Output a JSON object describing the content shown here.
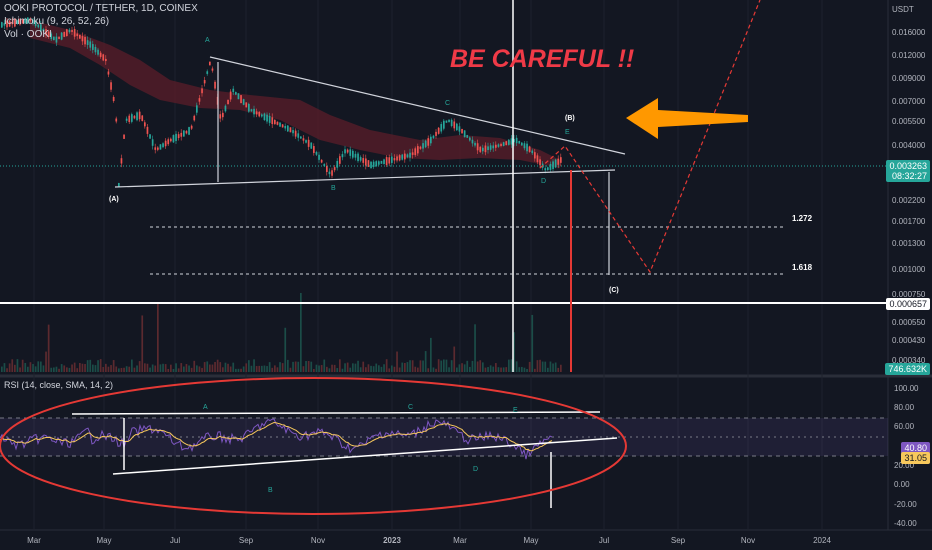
{
  "header": {
    "symbol": "OOKI PROTOCOL / TETHER, 1D, COINEX",
    "ichimoku": "Ichimoku (9, 26, 52, 26)",
    "volume": "Vol · OOKI"
  },
  "currency": "USDT",
  "price_axis_ticks": [
    "0.016000",
    "0.012000",
    "0.009000",
    "0.007000",
    "0.005500",
    "0.004000",
    "0.002200",
    "0.001700",
    "0.001300",
    "0.001000",
    "0.000750",
    "0.000550",
    "0.000430",
    "0.000340"
  ],
  "price_tag": {
    "value": "0.003263",
    "countdown": "08:32:27"
  },
  "level_tag": "0.000657",
  "volume_tag": "746.632K",
  "annotation": {
    "text": "BE CAREFUL !!",
    "color": "#ef3a47"
  },
  "fib_labels": [
    "1.272",
    "1.618"
  ],
  "wave_labels": {
    "A_bottom": "(A)",
    "B_top": "(B)",
    "C_bottom": "(C)",
    "A": "A",
    "B": "B",
    "C": "C",
    "D": "D",
    "E": "E"
  },
  "rsi": {
    "title": "RSI (14, close, SMA, 14, 2)",
    "axis_ticks": [
      "100.00",
      "80.00",
      "60.00",
      "20.00",
      "0.00",
      "-20.00",
      "-40.00"
    ],
    "value_tags": [
      "40.80",
      "31.05"
    ],
    "wave_labels": {
      "A": "A",
      "B": "B",
      "C": "C",
      "D": "D",
      "E": "E"
    }
  },
  "time_axis": [
    "Mar",
    "May",
    "Jul",
    "Sep",
    "Nov",
    "2023",
    "Mar",
    "May",
    "Jul",
    "Sep",
    "Nov",
    "2024"
  ],
  "chart_data": {
    "type": "candlestick",
    "title": "OOKI PROTOCOL / TETHER, 1D, COINEX",
    "y_scale": "log",
    "price_range_usdt": [
      0.00032,
      0.021
    ],
    "key_points": [
      {
        "label": "(A)",
        "period": "May 2022",
        "price": 0.0029
      },
      {
        "label": "A",
        "period": "Aug 2022",
        "price": 0.012
      },
      {
        "label": "B",
        "period": "Nov 2022",
        "price": 0.0032
      },
      {
        "label": "C",
        "period": "Feb 2023",
        "price": 0.0058
      },
      {
        "label": "D",
        "period": "May 2023",
        "price": 0.0031
      },
      {
        "label": "E",
        "period": "Jun 2023",
        "price": 0.0044
      },
      {
        "label": "(B)",
        "period": "Jun 2023",
        "price": 0.0048
      },
      {
        "label": "(C)",
        "period": "Jul 2023",
        "price": 0.00085
      }
    ],
    "current_price": 0.003263,
    "fib_levels": [
      {
        "name": "1.272",
        "price": 0.00174
      },
      {
        "name": "1.618",
        "price": 0.00093
      }
    ],
    "horizontal_level": 0.000657,
    "rsi": {
      "range": [
        -40,
        100
      ],
      "bands": [
        30,
        70
      ],
      "current": [
        40.8,
        31.05
      ]
    }
  }
}
